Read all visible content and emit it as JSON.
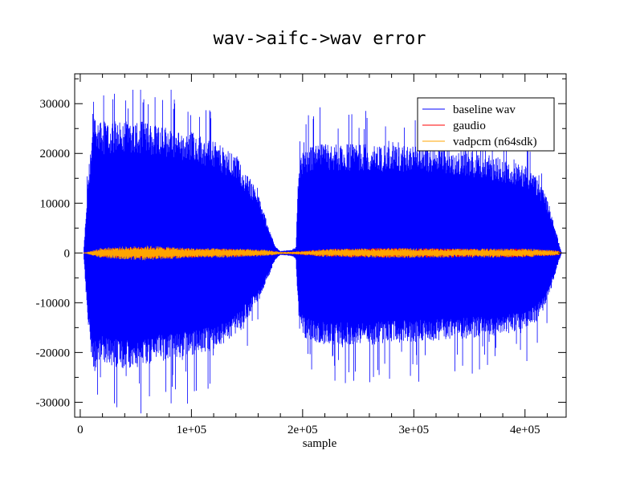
{
  "chart_data": {
    "type": "line",
    "title": "wav->aifc->wav error",
    "xlabel": "sample",
    "ylabel": "",
    "xlim": [
      -5000,
      437000
    ],
    "ylim": [
      -33000,
      36000
    ],
    "x_ticks": [
      0,
      100000,
      200000,
      300000,
      400000
    ],
    "x_tick_labels": [
      "0",
      "1e+05",
      "2e+05",
      "3e+05",
      "4e+05"
    ],
    "y_ticks": [
      -30000,
      -20000,
      -10000,
      0,
      10000,
      20000,
      30000
    ],
    "y_tick_labels": [
      "-30000",
      "-20000",
      "-10000",
      "0",
      "10000",
      "20000",
      "30000"
    ],
    "legend_position": "top-right",
    "series": [
      {
        "name": "baseline wav",
        "color": "#0000ff",
        "style": "envelope",
        "x": [
          3000,
          7000,
          12000,
          20000,
          40000,
          60000,
          80000,
          100000,
          120000,
          140000,
          160000,
          170000,
          175000,
          180000,
          190000,
          194000,
          196000,
          198000,
          200000,
          220000,
          250000,
          280000,
          300000,
          330000,
          360000,
          380000,
          400000,
          410000,
          420000,
          425000,
          430000,
          433000
        ],
        "max": [
          0,
          15000,
          28000,
          26000,
          27000,
          26500,
          25500,
          24500,
          22500,
          19500,
          12000,
          5000,
          1500,
          400,
          600,
          1200,
          15000,
          19000,
          21000,
          22000,
          22000,
          21500,
          21500,
          21000,
          20000,
          19000,
          17500,
          15500,
          11000,
          7000,
          2500,
          0
        ],
        "min": [
          0,
          -15000,
          -24000,
          -22000,
          -23500,
          -22500,
          -21500,
          -21000,
          -19500,
          -16500,
          -10000,
          -4500,
          -1500,
          -400,
          -600,
          -1200,
          -12000,
          -15000,
          -17000,
          -18500,
          -18500,
          -18000,
          -18000,
          -17500,
          -17000,
          -16500,
          -15500,
          -14000,
          -10000,
          -6000,
          -2000,
          0
        ],
        "peak_max": 32800,
        "peak_min": -32800
      },
      {
        "name": "gaudio",
        "color": "#ff0000",
        "style": "envelope",
        "x": [
          3000,
          20000,
          60000,
          100000,
          140000,
          170000,
          180000,
          195000,
          220000,
          280000,
          340000,
          400000,
          430000,
          433000
        ],
        "max": [
          0,
          900,
          1200,
          900,
          800,
          500,
          200,
          300,
          800,
          1000,
          900,
          900,
          500,
          0
        ],
        "min": [
          0,
          -900,
          -1200,
          -900,
          -800,
          -500,
          -200,
          -300,
          -800,
          -1000,
          -900,
          -900,
          -500,
          0
        ]
      },
      {
        "name": "vadpcm (n64sdk)",
        "color": "#ffa500",
        "style": "envelope",
        "x": [
          3000,
          20000,
          60000,
          100000,
          140000,
          170000,
          180000,
          195000,
          220000,
          280000,
          340000,
          400000,
          430000,
          433000
        ],
        "max": [
          0,
          1100,
          1500,
          1000,
          900,
          600,
          200,
          300,
          800,
          1000,
          900,
          900,
          500,
          0
        ],
        "min": [
          0,
          -1100,
          -1500,
          -1000,
          -900,
          -600,
          -200,
          -300,
          -800,
          -1000,
          -900,
          -900,
          -500,
          0
        ]
      }
    ]
  }
}
